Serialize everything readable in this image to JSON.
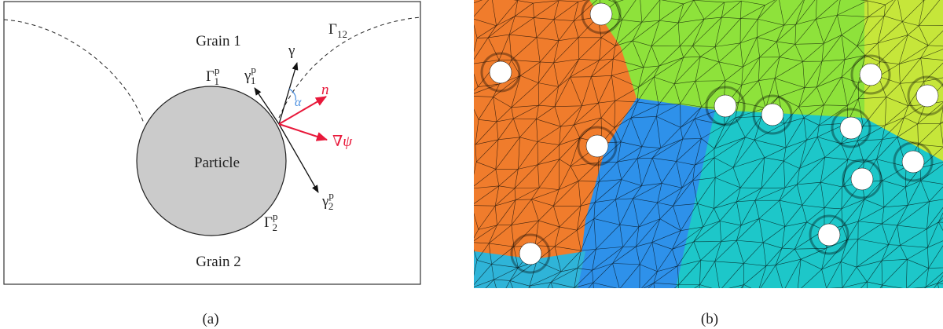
{
  "panel_a": {
    "grain_1": "Grain 1",
    "grain_2": "Grain 2",
    "particle": "Particle",
    "gamma_12": {
      "base": "Γ",
      "sub": "12"
    },
    "gamma_1p": {
      "base": "Γ",
      "sub": "1",
      "sup": "p"
    },
    "gamma_2p": {
      "base": "Γ",
      "sub": "2",
      "sup": "p"
    },
    "tension": "γ",
    "tension_1p": {
      "base": "γ",
      "sub": "1",
      "sup": "p"
    },
    "tension_2p": {
      "base": "γ",
      "sub": "2",
      "sup": "p"
    },
    "normal": "n",
    "gradient": "∇ψ",
    "angle": "α",
    "caption": "(a)"
  },
  "panel_b": {
    "caption": "(b)"
  }
}
